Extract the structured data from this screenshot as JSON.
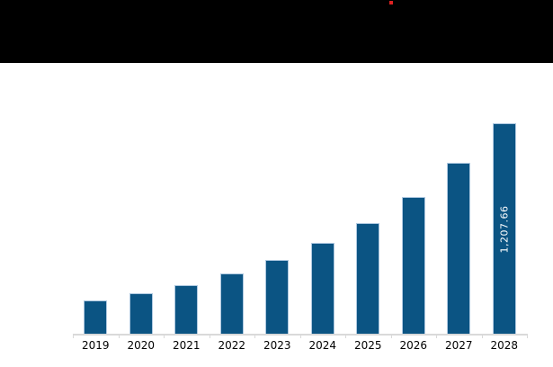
{
  "header": {
    "type": "redacted-black-box",
    "marker_color": "#dd2121"
  },
  "chart_data": {
    "type": "bar",
    "title": "",
    "categories": [
      "2019",
      "2020",
      "2021",
      "2022",
      "2023",
      "2024",
      "2025",
      "2026",
      "2027",
      "2028"
    ],
    "values": [
      192,
      230,
      280,
      347,
      424,
      519,
      637,
      784,
      978,
      1207.66
    ],
    "value_labels": [
      "",
      "",
      "",
      "",
      "",
      "",
      "",
      "",
      "",
      "1,207.66"
    ],
    "values_note": "Only the 2028 bar carries a printed data label (1,207.66); other values are estimated from bar heights.",
    "xlabel": "",
    "ylabel": "",
    "ylim": [
      0,
      1460
    ],
    "grid": false,
    "legend_position": "none-visible",
    "colors": {
      "bar_fill": "#0b5483",
      "bar_border": "#aec8e0",
      "bar_value_label_text": "#ffffff",
      "axis_line": "#d9d9d9",
      "tick_label_text": "#000000",
      "background": "#ffffff",
      "header_redaction": "#000000"
    }
  }
}
